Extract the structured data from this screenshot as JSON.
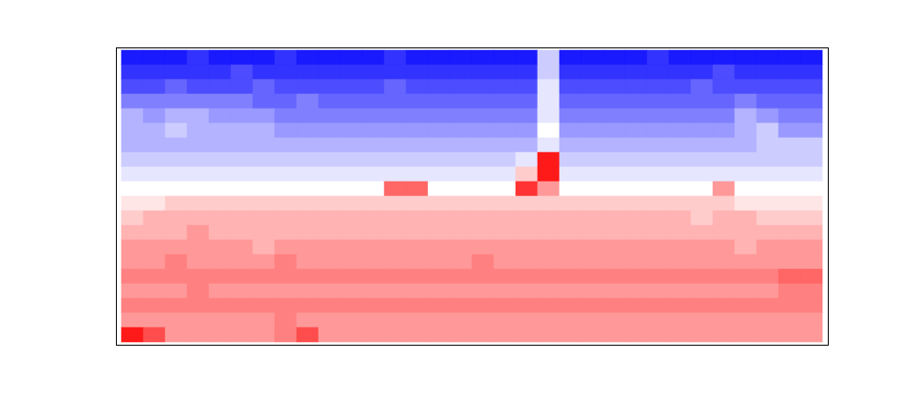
{
  "chart_data": {
    "type": "heatmap",
    "tick_labels": false,
    "colors": [
      "#0000ff",
      "#ffffff",
      "#ff0000"
    ],
    "zlim": [
      -10,
      10
    ],
    "cells": [
      [
        -9,
        -9,
        -9,
        -8,
        -9,
        -9,
        -9,
        -8,
        -9,
        -9,
        -9,
        -9,
        -8,
        -9,
        -9,
        -9,
        -9,
        -9,
        -9,
        -2,
        -9,
        -9,
        -9,
        -9,
        -8,
        -9,
        -9,
        -9,
        -9,
        -9,
        -9,
        -9
      ],
      [
        -8,
        -8,
        -8,
        -8,
        -8,
        -7,
        -8,
        -8,
        -8,
        -8,
        -8,
        -8,
        -8,
        -8,
        -8,
        -8,
        -8,
        -8,
        -8,
        -2,
        -8,
        -8,
        -8,
        -8,
        -8,
        -8,
        -8,
        -7,
        -8,
        -8,
        -8,
        -8
      ],
      [
        -7,
        -7,
        -6,
        -7,
        -7,
        -7,
        -6,
        -7,
        -7,
        -7,
        -7,
        -7,
        -6,
        -7,
        -7,
        -7,
        -7,
        -7,
        -7,
        -1,
        -7,
        -7,
        -7,
        -7,
        -7,
        -7,
        -6,
        -7,
        -7,
        -7,
        -7,
        -7
      ],
      [
        -5,
        -5,
        -5,
        -5,
        -5,
        -5,
        -6,
        -6,
        -5,
        -6,
        -6,
        -6,
        -6,
        -6,
        -6,
        -6,
        -6,
        -6,
        -6,
        -1,
        -6,
        -6,
        -6,
        -6,
        -6,
        -6,
        -6,
        -6,
        -5,
        -6,
        -6,
        -6
      ],
      [
        -3,
        -4,
        -3,
        -3,
        -4,
        -4,
        -4,
        -5,
        -5,
        -5,
        -5,
        -5,
        -5,
        -5,
        -5,
        -5,
        -5,
        -5,
        -5,
        -1,
        -5,
        -5,
        -5,
        -5,
        -5,
        -5,
        -5,
        -5,
        -3,
        -4,
        -5,
        -5
      ],
      [
        -3,
        -3,
        -2,
        -3,
        -3,
        -3,
        -3,
        -4,
        -4,
        -4,
        -4,
        -4,
        -4,
        -4,
        -4,
        -4,
        -4,
        -4,
        -4,
        0,
        -4,
        -4,
        -4,
        -4,
        -4,
        -4,
        -4,
        -4,
        -3,
        -2,
        -4,
        -4
      ],
      [
        -3,
        -3,
        -3,
        -3,
        -3,
        -3,
        -3,
        -3,
        -3,
        -3,
        -3,
        -3,
        -3,
        -3,
        -3,
        -3,
        -3,
        -3,
        -3,
        -1,
        -3,
        -3,
        -3,
        -3,
        -3,
        -3,
        -3,
        -3,
        -3,
        -2,
        -2,
        -2
      ],
      [
        -2,
        -2,
        -2,
        -2,
        -2,
        -2,
        -2,
        -2,
        -2,
        -2,
        -2,
        -2,
        -2,
        -2,
        -2,
        -2,
        -2,
        -2,
        -1,
        9,
        -2,
        -2,
        -2,
        -2,
        -2,
        -2,
        -2,
        -2,
        -2,
        -2,
        -2,
        -2
      ],
      [
        -1,
        -1,
        -1,
        -1,
        -1,
        -1,
        -1,
        -1,
        -1,
        -1,
        -1,
        -1,
        -1,
        -1,
        -1,
        -1,
        -1,
        -1,
        2,
        9,
        -1,
        -1,
        -1,
        -1,
        -1,
        -1,
        -1,
        -1,
        -1,
        -1,
        -1,
        -1
      ],
      [
        0,
        0,
        0,
        0,
        0,
        0,
        0,
        0,
        0,
        0,
        0,
        0,
        6,
        6,
        0,
        0,
        0,
        0,
        8,
        4,
        0,
        0,
        0,
        0,
        0,
        0,
        0,
        4,
        0,
        0,
        0,
        0
      ],
      [
        1,
        1,
        2,
        2,
        2,
        2,
        2,
        2,
        2,
        2,
        2,
        2,
        2,
        2,
        2,
        2,
        2,
        2,
        2,
        2,
        2,
        2,
        2,
        2,
        2,
        2,
        2,
        2,
        1,
        1,
        1,
        1
      ],
      [
        2,
        3,
        3,
        3,
        3,
        3,
        3,
        3,
        3,
        3,
        3,
        3,
        3,
        3,
        3,
        3,
        3,
        3,
        3,
        3,
        3,
        3,
        3,
        3,
        3,
        3,
        2,
        3,
        3,
        2,
        2,
        2
      ],
      [
        3,
        3,
        3,
        4,
        3,
        3,
        3,
        3,
        3,
        3,
        3,
        3,
        3,
        3,
        3,
        3,
        3,
        3,
        3,
        3,
        3,
        3,
        3,
        3,
        3,
        3,
        3,
        3,
        3,
        3,
        3,
        3
      ],
      [
        4,
        4,
        4,
        4,
        4,
        4,
        3,
        4,
        4,
        4,
        4,
        4,
        4,
        4,
        4,
        4,
        4,
        4,
        4,
        4,
        4,
        4,
        4,
        4,
        4,
        4,
        4,
        4,
        3,
        4,
        4,
        4
      ],
      [
        4,
        4,
        5,
        4,
        4,
        4,
        4,
        5,
        4,
        4,
        4,
        4,
        4,
        4,
        4,
        4,
        5,
        4,
        4,
        4,
        4,
        4,
        4,
        4,
        4,
        4,
        4,
        4,
        4,
        4,
        4,
        4
      ],
      [
        5,
        5,
        5,
        5,
        5,
        5,
        5,
        5,
        5,
        5,
        5,
        5,
        5,
        5,
        5,
        5,
        5,
        5,
        5,
        5,
        5,
        5,
        5,
        5,
        5,
        5,
        5,
        5,
        5,
        5,
        6,
        6
      ],
      [
        4,
        4,
        4,
        5,
        4,
        4,
        4,
        4,
        4,
        4,
        4,
        4,
        4,
        4,
        4,
        4,
        4,
        4,
        4,
        4,
        4,
        4,
        4,
        4,
        4,
        4,
        4,
        4,
        4,
        4,
        5,
        5
      ],
      [
        5,
        5,
        5,
        5,
        5,
        5,
        5,
        5,
        5,
        5,
        5,
        5,
        5,
        5,
        5,
        5,
        5,
        5,
        5,
        5,
        5,
        5,
        5,
        5,
        5,
        5,
        5,
        5,
        5,
        5,
        5,
        5
      ],
      [
        4,
        4,
        4,
        4,
        4,
        4,
        4,
        5,
        4,
        4,
        4,
        4,
        4,
        4,
        4,
        4,
        4,
        4,
        4,
        4,
        4,
        4,
        4,
        4,
        4,
        4,
        4,
        4,
        4,
        4,
        4,
        4
      ],
      [
        9,
        7,
        4,
        4,
        4,
        4,
        4,
        5,
        7,
        4,
        4,
        4,
        4,
        4,
        4,
        4,
        4,
        4,
        4,
        4,
        4,
        4,
        4,
        4,
        4,
        4,
        4,
        4,
        4,
        4,
        4,
        4
      ]
    ]
  }
}
